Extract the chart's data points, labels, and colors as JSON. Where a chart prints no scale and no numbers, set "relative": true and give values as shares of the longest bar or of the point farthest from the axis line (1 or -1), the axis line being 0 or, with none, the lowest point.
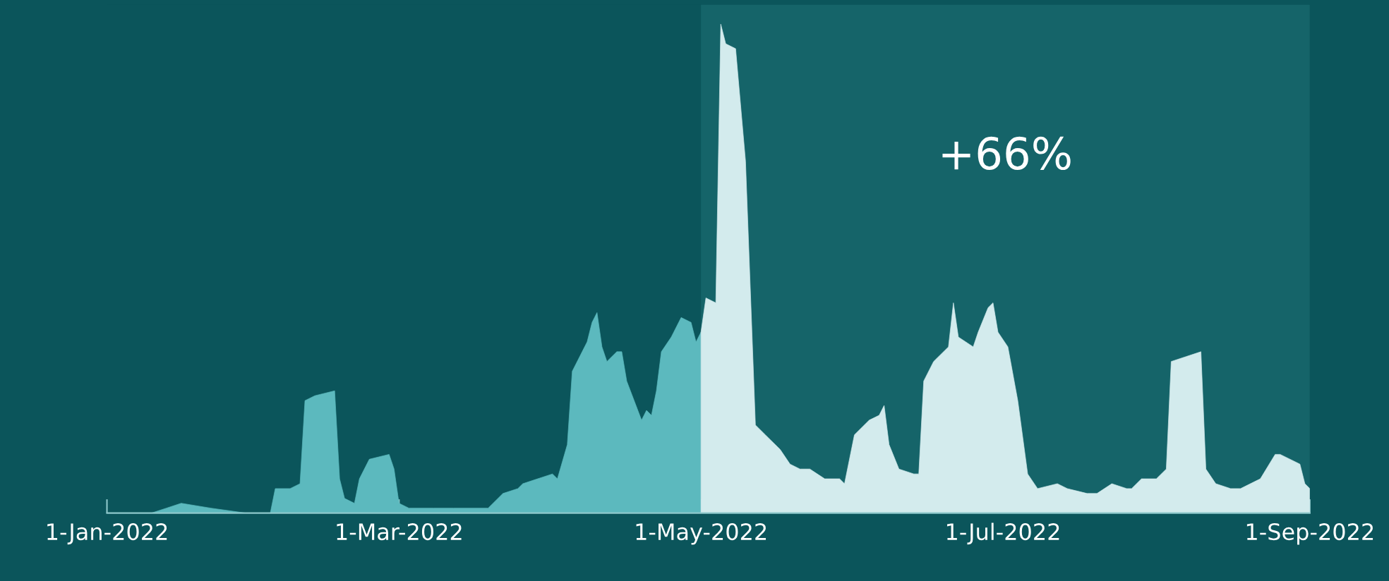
{
  "chart_data": {
    "type": "area",
    "relative": true,
    "x": [
      "2022-01-01",
      "2022-01-10",
      "2022-01-13",
      "2022-01-16",
      "2022-01-22",
      "2022-01-29",
      "2022-02-03",
      "2022-02-04",
      "2022-02-07",
      "2022-02-09",
      "2022-02-10",
      "2022-02-12",
      "2022-02-16",
      "2022-02-17",
      "2022-02-18",
      "2022-02-20",
      "2022-02-21",
      "2022-02-23",
      "2022-02-27",
      "2022-02-28",
      "2022-03-01",
      "2022-03-03",
      "2022-03-08",
      "2022-03-12",
      "2022-03-19",
      "2022-03-22",
      "2022-03-25",
      "2022-03-26",
      "2022-03-29",
      "2022-04-01",
      "2022-04-02",
      "2022-04-04",
      "2022-04-05",
      "2022-04-07",
      "2022-04-08",
      "2022-04-09",
      "2022-04-10",
      "2022-04-11",
      "2022-04-12",
      "2022-04-14",
      "2022-04-15",
      "2022-04-16",
      "2022-04-19",
      "2022-04-20",
      "2022-04-21",
      "2022-04-22",
      "2022-04-23",
      "2022-04-25",
      "2022-04-27",
      "2022-04-29",
      "2022-04-30",
      "2022-05-01",
      "2022-05-02",
      "2022-05-04",
      "2022-05-05",
      "2022-05-06",
      "2022-05-08",
      "2022-05-10",
      "2022-05-12",
      "2022-05-14",
      "2022-05-17",
      "2022-05-19",
      "2022-05-21",
      "2022-05-23",
      "2022-05-26",
      "2022-05-29",
      "2022-05-30",
      "2022-06-01",
      "2022-06-04",
      "2022-06-06",
      "2022-06-07",
      "2022-06-08",
      "2022-06-10",
      "2022-06-13",
      "2022-06-14",
      "2022-06-15",
      "2022-06-17",
      "2022-06-20",
      "2022-06-21",
      "2022-06-22",
      "2022-06-25",
      "2022-06-26",
      "2022-06-28",
      "2022-06-29",
      "2022-06-30",
      "2022-07-02",
      "2022-07-04",
      "2022-07-06",
      "2022-07-08",
      "2022-07-12",
      "2022-07-14",
      "2022-07-18",
      "2022-07-20",
      "2022-07-23",
      "2022-07-26",
      "2022-07-27",
      "2022-07-29",
      "2022-08-01",
      "2022-08-03",
      "2022-08-04",
      "2022-08-07",
      "2022-08-10",
      "2022-08-11",
      "2022-08-13",
      "2022-08-16",
      "2022-08-18",
      "2022-08-22",
      "2022-08-25",
      "2022-08-26",
      "2022-08-30",
      "2022-08-31",
      "2022-09-01"
    ],
    "series": [
      {
        "color": "#5cb9be",
        "values": [
          0.0,
          0.0,
          0.01,
          0.02,
          0.01,
          0.0,
          0.0,
          0.05,
          0.05,
          0.06,
          0.23,
          0.24,
          0.25,
          0.07,
          0.03,
          0.02,
          0.07,
          0.11,
          0.12,
          0.09,
          0.02,
          0.01,
          0.01,
          0.01,
          0.01,
          0.04,
          0.05,
          0.06,
          0.07,
          0.08,
          0.07,
          0.14,
          0.29,
          0.33,
          0.35,
          0.39,
          0.41,
          0.34,
          0.31,
          0.33,
          0.33,
          0.27,
          0.19,
          0.21,
          0.2,
          0.25,
          0.33,
          0.36,
          0.4,
          0.39,
          0.35,
          0.37,
          null,
          null,
          null,
          null,
          null,
          null,
          null,
          null,
          null,
          null,
          null,
          null,
          null,
          null,
          null,
          null,
          null,
          null,
          null,
          null,
          null,
          null,
          null,
          null,
          null,
          null,
          null,
          null,
          null,
          null,
          null,
          null,
          null,
          null,
          null,
          null,
          null,
          null,
          null,
          null,
          null,
          null,
          null,
          null,
          null,
          null,
          null,
          null,
          null,
          null,
          null,
          null,
          null,
          null,
          null,
          null,
          null,
          null,
          null,
          null
        ]
      },
      {
        "color": "#d3ebed",
        "values": [
          null,
          null,
          null,
          null,
          null,
          null,
          null,
          null,
          null,
          null,
          null,
          null,
          null,
          null,
          null,
          null,
          null,
          null,
          null,
          null,
          null,
          null,
          null,
          null,
          null,
          null,
          null,
          null,
          null,
          null,
          null,
          null,
          null,
          null,
          null,
          null,
          null,
          null,
          null,
          null,
          null,
          null,
          null,
          null,
          null,
          null,
          null,
          null,
          null,
          null,
          null,
          0.37,
          0.44,
          0.43,
          1.0,
          0.96,
          0.95,
          0.72,
          0.18,
          0.16,
          0.13,
          0.1,
          0.09,
          0.09,
          0.07,
          0.07,
          0.06,
          0.16,
          0.19,
          0.2,
          0.22,
          0.14,
          0.09,
          0.08,
          0.08,
          0.27,
          0.31,
          0.34,
          0.43,
          0.36,
          0.34,
          0.37,
          0.42,
          0.43,
          0.37,
          0.34,
          0.23,
          0.08,
          0.05,
          0.06,
          0.05,
          0.04,
          0.04,
          0.06,
          0.05,
          0.05,
          0.07,
          0.07,
          0.09,
          0.31,
          0.32,
          0.33,
          0.09,
          0.06,
          0.05,
          0.05,
          0.07,
          0.12,
          0.12,
          0.1,
          0.06,
          0.05
        ]
      }
    ],
    "xlim": [
      "2022-01-01",
      "2022-09-01"
    ],
    "xticks": [
      {
        "value": "2022-01-01",
        "label": "1-Jan-2022"
      },
      {
        "value": "2022-03-01",
        "label": "1-Mar-2022"
      },
      {
        "value": "2022-05-01",
        "label": "1-May-2022"
      },
      {
        "value": "2022-07-01",
        "label": "1-Jul-2022"
      },
      {
        "value": "2022-09-01",
        "label": "1-Sep-2022"
      }
    ],
    "bands": [
      {
        "axis": "x",
        "from": "2022-05-01",
        "to": "2022-09-01",
        "color": "#156469"
      }
    ],
    "annotations": [
      "+66%"
    ],
    "grid": false,
    "legend": false
  }
}
